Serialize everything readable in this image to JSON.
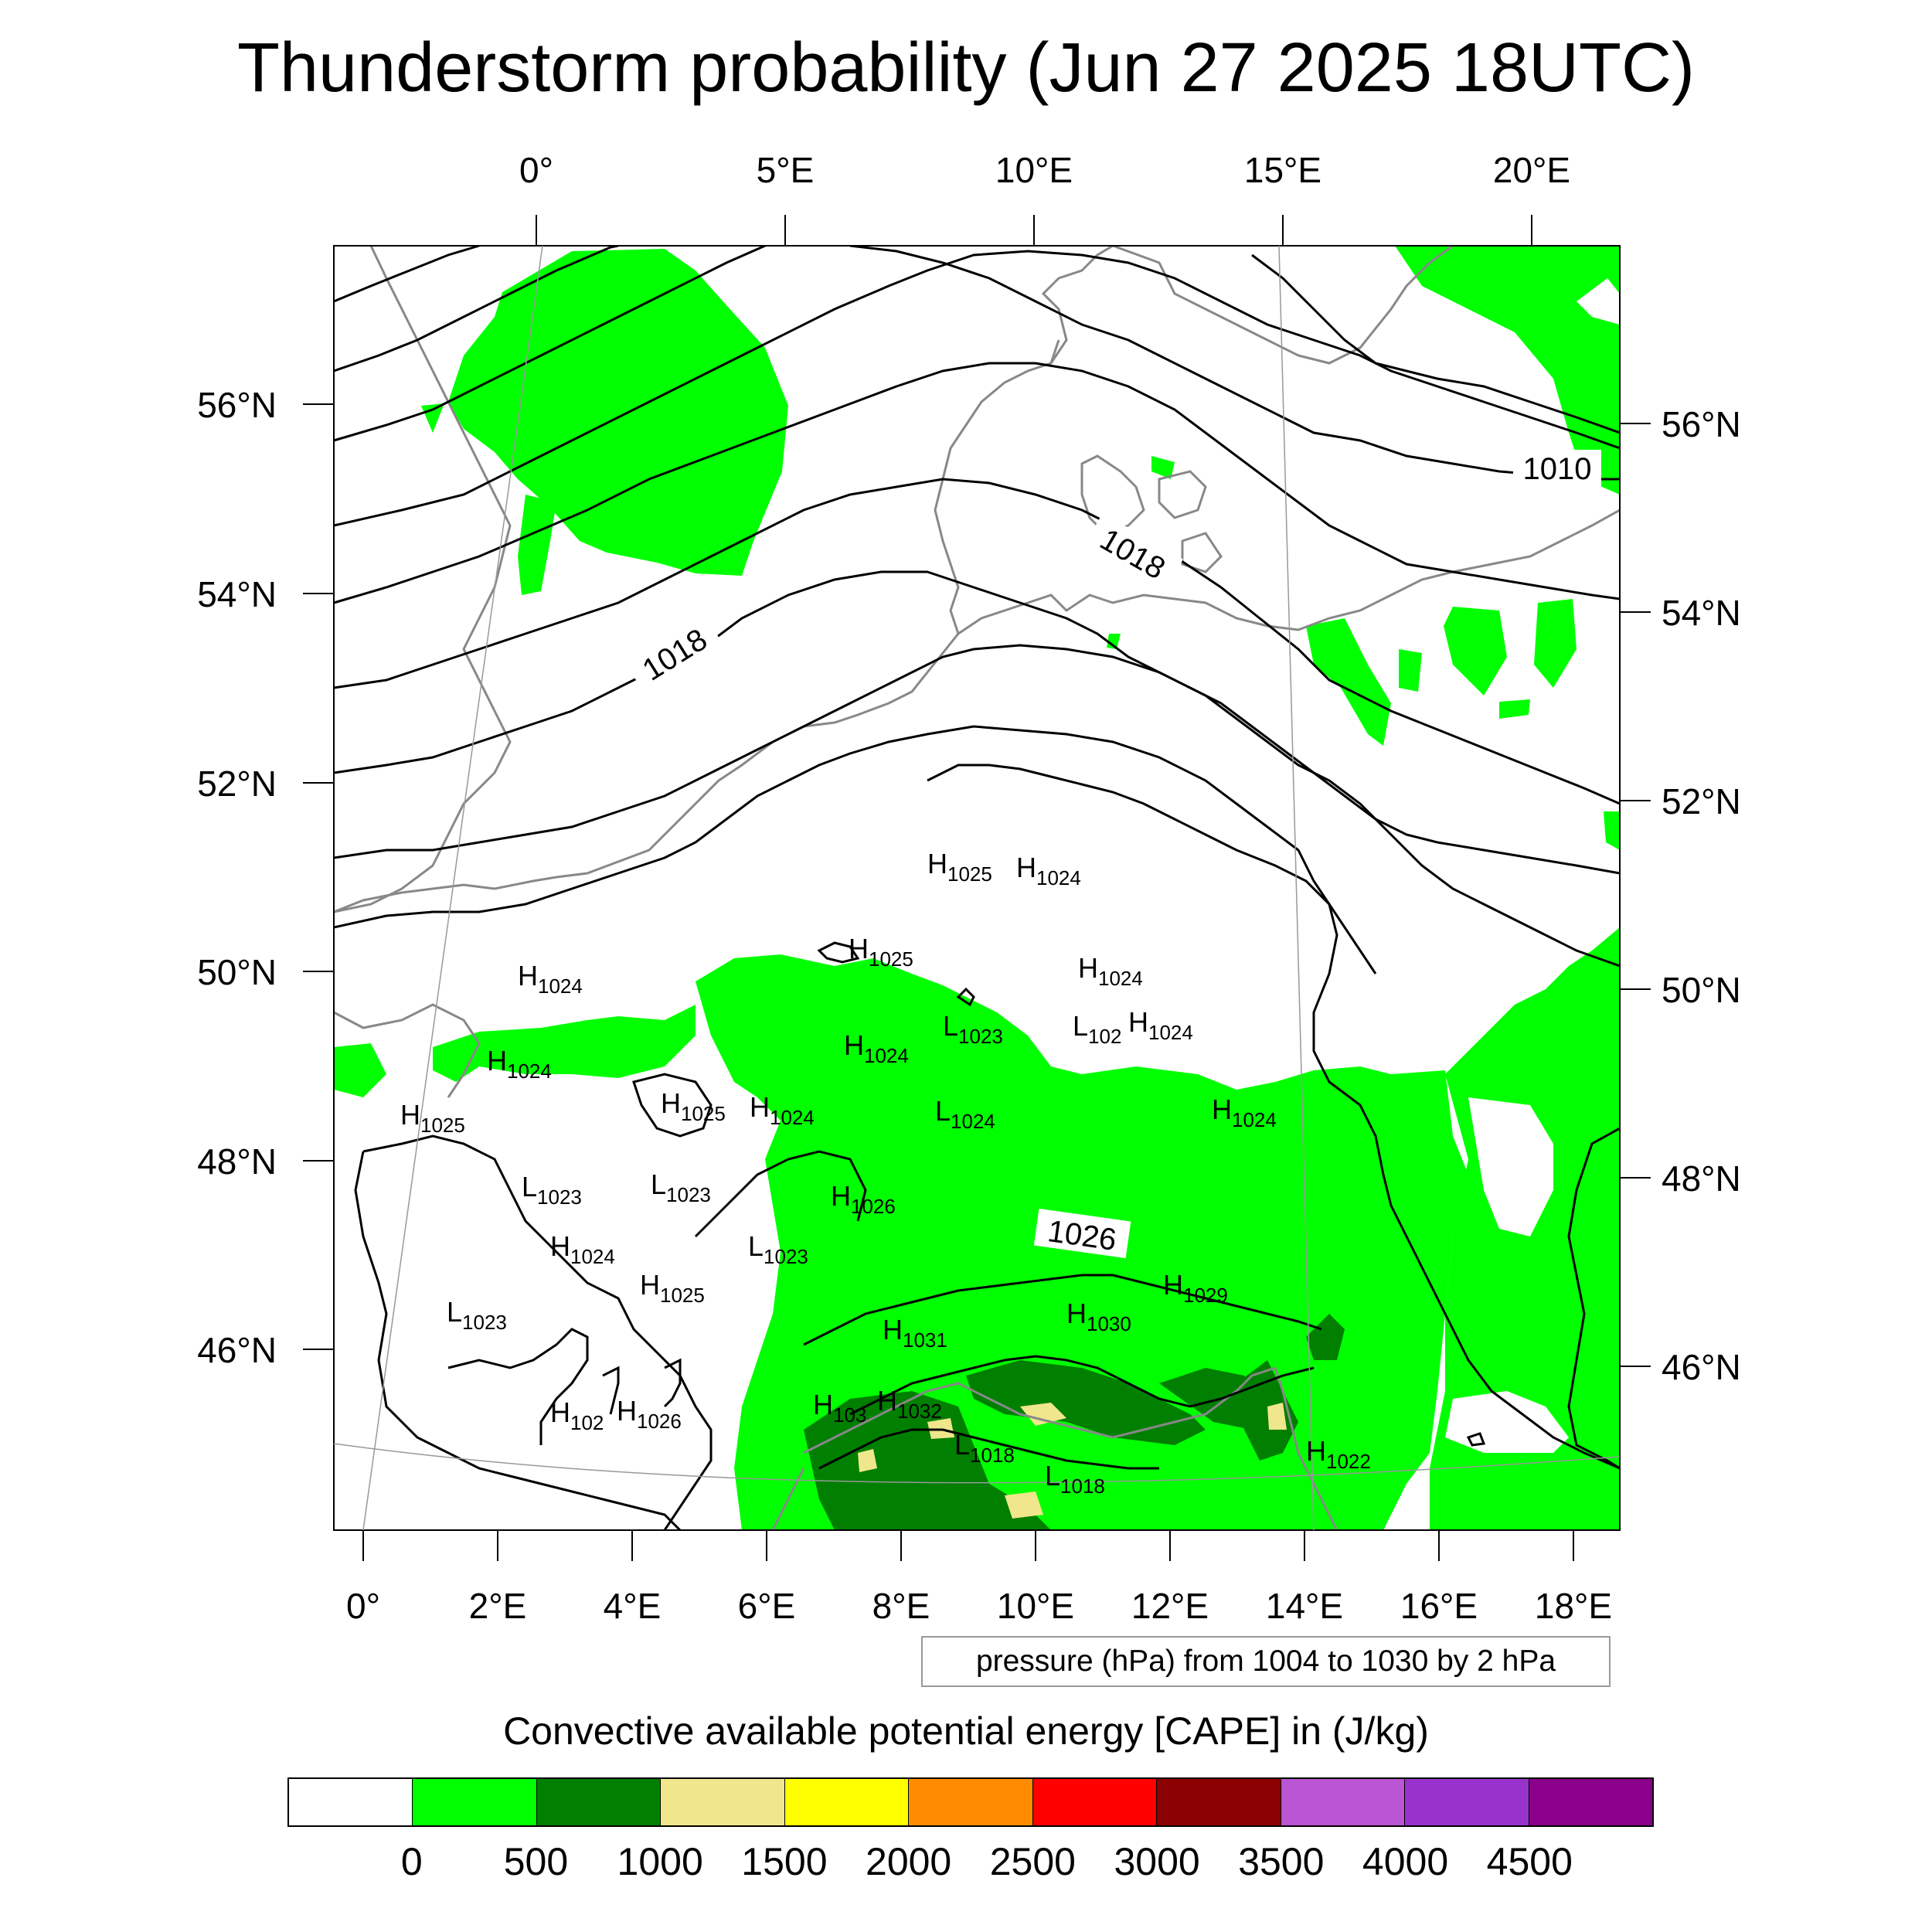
{
  "title": "Thunderstorm probability (Jun 27 2025 18UTC)",
  "map": {
    "top_lon_labels": [
      "0°",
      "5°E",
      "10°E",
      "15°E",
      "20°E"
    ],
    "bottom_lon_labels": [
      "0°",
      "2°E",
      "4°E",
      "6°E",
      "8°E",
      "10°E",
      "12°E",
      "14°E",
      "16°E",
      "18°E"
    ],
    "left_lat_labels": [
      "56°N",
      "54°N",
      "52°N",
      "50°N",
      "48°N",
      "46°N"
    ],
    "right_lat_labels": [
      "56°N",
      "54°N",
      "52°N",
      "50°N",
      "48°N",
      "46°N"
    ],
    "contour_labels": [
      "1010",
      "1018",
      "1018",
      "1026"
    ],
    "pressure_centers": [
      {
        "letter": "H",
        "value": "1025"
      },
      {
        "letter": "H",
        "value": "1024"
      },
      {
        "letter": "H",
        "value": "1025"
      },
      {
        "letter": "H",
        "value": "1024"
      },
      {
        "letter": "H",
        "value": "1024"
      },
      {
        "letter": "L",
        "value": "1023"
      },
      {
        "letter": "L",
        "value": "102"
      },
      {
        "letter": "H",
        "value": "1024"
      },
      {
        "letter": "H",
        "value": "1024"
      },
      {
        "letter": "H",
        "value": "1024"
      },
      {
        "letter": "H",
        "value": "1025"
      },
      {
        "letter": "H",
        "value": "1025"
      },
      {
        "letter": "H",
        "value": "1024"
      },
      {
        "letter": "L",
        "value": "1024"
      },
      {
        "letter": "H",
        "value": "1024"
      },
      {
        "letter": "L",
        "value": "1023"
      },
      {
        "letter": "L",
        "value": "1023"
      },
      {
        "letter": "H",
        "value": "1026"
      },
      {
        "letter": "H",
        "value": "1024"
      },
      {
        "letter": "L",
        "value": "1023"
      },
      {
        "letter": "H",
        "value": "1025"
      },
      {
        "letter": "L",
        "value": "1023"
      },
      {
        "letter": "H",
        "value": "1030"
      },
      {
        "letter": "H",
        "value": "1029"
      },
      {
        "letter": "H",
        "value": "1031"
      },
      {
        "letter": "H",
        "value": "103"
      },
      {
        "letter": "H",
        "value": "1032"
      },
      {
        "letter": "H",
        "value": "102"
      },
      {
        "letter": "H",
        "value": "1026"
      },
      {
        "letter": "L",
        "value": "1018"
      },
      {
        "letter": "L",
        "value": "1018"
      },
      {
        "letter": "H",
        "value": "1022"
      }
    ],
    "contour_note": "pressure (hPa) from 1004 to 1030 by 2 hPa"
  },
  "colorbar": {
    "title": "Convective available potential energy [CAPE] in (J/kg)",
    "colors": [
      "#ffffff",
      "#00ff00",
      "#007f00",
      "#f0e68c",
      "#ffff00",
      "#ff8c00",
      "#ff0000",
      "#8b0000",
      "#ba55d3",
      "#9932cc",
      "#8b008b"
    ],
    "labels": [
      "0",
      "500",
      "1000",
      "1500",
      "2000",
      "2500",
      "3000",
      "3500",
      "4000",
      "4500"
    ]
  },
  "colors": {
    "cape_0_500": "#00ff00",
    "cape_500_1000": "#007f00",
    "cape_1000_1500": "#f0e68c",
    "coastline": "#888888",
    "isobar": "#000000"
  }
}
